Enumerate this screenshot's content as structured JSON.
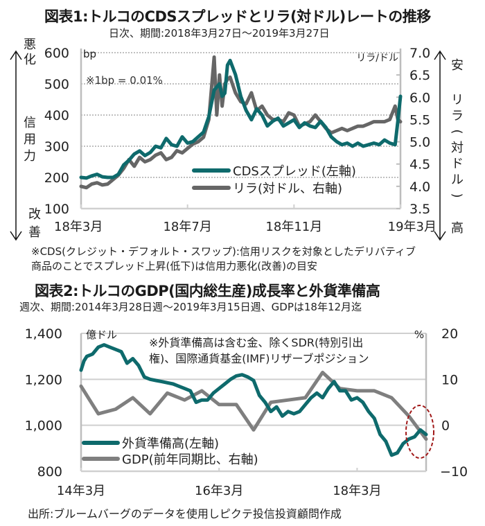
{
  "chart_data": [
    {
      "type": "line",
      "title": "図表1:トルコのCDSスプレッドとリラ(対ドル)レートの推移",
      "subtitle": "日次、期間:2018年3月27日〜2019年3月27日",
      "unit_left": "bp",
      "unit_right": "リラ/ドル",
      "annotation": "※1bp = 0.01%",
      "left_axis_label_top": "悪化",
      "left_axis_label_mid": "信用力",
      "left_axis_label_bottom": "改善",
      "right_axis_label_top": "安",
      "right_axis_label_mid": "リラ(対ドル)",
      "right_axis_label_bottom": "高",
      "ylim_left": [
        100,
        600
      ],
      "yticks_left": [
        "600",
        "500",
        "400",
        "300",
        "200",
        "100"
      ],
      "ylim_right": [
        3.5,
        7.0
      ],
      "yticks_right": [
        "7.0",
        "6.5",
        "6.0",
        "5.5",
        "5.0",
        "4.5",
        "4.0",
        "3.5"
      ],
      "xticks": [
        "18年3月",
        "18年7月",
        "18年11月",
        "19年3月"
      ],
      "xlim": [
        0,
        12
      ],
      "xtick_positions": [
        0,
        4,
        8,
        12
      ],
      "grid": true,
      "legend_position": "bottom-right",
      "series": [
        {
          "name": "CDSスプレッド(左軸)",
          "axis": "left",
          "color": "#0e6a6c",
          "x": [
            0,
            0.2,
            0.4,
            0.6,
            0.8,
            1.0,
            1.2,
            1.4,
            1.6,
            1.8,
            2.0,
            2.2,
            2.4,
            2.6,
            2.8,
            3.0,
            3.2,
            3.4,
            3.6,
            3.8,
            4.0,
            4.2,
            4.4,
            4.6,
            4.8,
            5.0,
            5.2,
            5.3,
            5.4,
            5.5,
            5.6,
            5.8,
            6.0,
            6.2,
            6.4,
            6.6,
            6.8,
            7.0,
            7.2,
            7.4,
            7.6,
            7.8,
            8.0,
            8.2,
            8.4,
            8.6,
            8.8,
            9.0,
            9.2,
            9.4,
            9.6,
            9.8,
            10.0,
            10.2,
            10.4,
            10.6,
            10.8,
            11.0,
            11.2,
            11.4,
            11.6,
            11.8,
            11.9,
            12.0
          ],
          "values": [
            200,
            198,
            205,
            210,
            202,
            200,
            200,
            210,
            240,
            255,
            275,
            285,
            270,
            280,
            300,
            295,
            325,
            305,
            300,
            330,
            310,
            315,
            330,
            345,
            395,
            480,
            500,
            460,
            470,
            560,
            575,
            530,
            460,
            415,
            385,
            420,
            400,
            365,
            380,
            390,
            365,
            375,
            385,
            360,
            375,
            365,
            360,
            380,
            360,
            330,
            315,
            305,
            310,
            300,
            310,
            300,
            305,
            310,
            305,
            320,
            310,
            305,
            380,
            460
          ]
        },
        {
          "name": "リラ(対ドル、右軸)",
          "axis": "right",
          "color": "#666666",
          "x": [
            0,
            0.2,
            0.4,
            0.6,
            0.8,
            1.0,
            1.2,
            1.4,
            1.6,
            1.8,
            2.0,
            2.2,
            2.4,
            2.6,
            2.8,
            3.0,
            3.2,
            3.4,
            3.6,
            3.8,
            4.0,
            4.2,
            4.4,
            4.6,
            4.8,
            5.0,
            5.1,
            5.2,
            5.3,
            5.4,
            5.5,
            5.6,
            5.8,
            6.0,
            6.2,
            6.4,
            6.6,
            6.8,
            7.0,
            7.2,
            7.4,
            7.6,
            7.8,
            8.0,
            8.2,
            8.4,
            8.6,
            8.8,
            9.0,
            9.2,
            9.4,
            9.6,
            9.8,
            10.0,
            10.2,
            10.4,
            10.6,
            10.8,
            11.0,
            11.2,
            11.4,
            11.6,
            11.8,
            11.9,
            12.0
          ],
          "values": [
            4.0,
            3.97,
            4.05,
            4.08,
            4.03,
            4.05,
            4.15,
            4.25,
            4.4,
            4.6,
            4.45,
            4.65,
            4.55,
            4.6,
            4.7,
            4.75,
            4.6,
            4.65,
            4.8,
            4.75,
            4.85,
            4.95,
            5.0,
            5.1,
            5.5,
            6.9,
            5.6,
            6.5,
            5.8,
            6.3,
            6.4,
            6.45,
            6.1,
            5.9,
            5.85,
            6.1,
            5.7,
            5.8,
            5.6,
            5.5,
            5.5,
            5.45,
            5.65,
            5.6,
            5.35,
            5.4,
            5.45,
            5.6,
            5.45,
            5.3,
            5.2,
            5.25,
            5.3,
            5.25,
            5.3,
            5.35,
            5.35,
            5.4,
            5.45,
            5.45,
            5.45,
            5.5,
            5.8,
            5.5,
            5.45
          ]
        }
      ],
      "footnote_lines": [
        "※CDS(クレジット・デフォルト・スワップ):信用リスクを対象としたデリバティブ",
        "商品のことでスプレッド上昇(低下)は信用力悪化(改善)の目安"
      ]
    },
    {
      "type": "line",
      "title": "図表2:トルコのGDP(国内総生産)成長率と外貨準備高",
      "subtitle": "週次、期間:2014年3月28日週〜2019年3月15日週、GDPは18年12月迄",
      "unit_left": "億ドル",
      "unit_right": "%",
      "annotation_lines": [
        "※外貨準備高は含む金、除くSDR(特別引出",
        "権)、国際通貨基金(IMF)リザーブポジション"
      ],
      "ylim_left": [
        800,
        1400
      ],
      "yticks_left": [
        "1,400",
        "1,200",
        "1,000",
        "800"
      ],
      "ylim_right": [
        -10,
        20
      ],
      "yticks_right": [
        "20",
        "10",
        "0",
        "-10"
      ],
      "xticks": [
        "14年3月",
        "16年3月",
        "18年3月"
      ],
      "xlim": [
        0,
        60
      ],
      "xtick_positions": [
        0,
        24,
        48
      ],
      "grid": true,
      "legend_position": "bottom-left",
      "highlight": "dashed-red-ellipse-at-latest-values",
      "highlight_color": "#a01818",
      "series": [
        {
          "name": "外貨準備高(左軸)",
          "axis": "left",
          "color": "#0e6a6c",
          "x": [
            0,
            0.5,
            1,
            2,
            3,
            4,
            5,
            6,
            7,
            8,
            9,
            10,
            11,
            12,
            13,
            14,
            15,
            16,
            17,
            18,
            19,
            20,
            21,
            22,
            23,
            24,
            25,
            26,
            27,
            28,
            29,
            30,
            31,
            32,
            33,
            34,
            35,
            36,
            37,
            38,
            39,
            40,
            41,
            42,
            43,
            44,
            45,
            46,
            47,
            48,
            49,
            50,
            51,
            52,
            53,
            54,
            55,
            56,
            57,
            58,
            59,
            60
          ],
          "values": [
            1240,
            1280,
            1300,
            1310,
            1340,
            1350,
            1340,
            1330,
            1320,
            1270,
            1290,
            1260,
            1210,
            1200,
            1195,
            1190,
            1185,
            1180,
            1170,
            1160,
            1150,
            1100,
            1110,
            1110,
            1140,
            1160,
            1180,
            1200,
            1215,
            1220,
            1210,
            1195,
            1130,
            1100,
            1060,
            1080,
            1040,
            1060,
            1050,
            1060,
            1090,
            1120,
            1140,
            1120,
            1160,
            1190,
            1150,
            1150,
            1110,
            1120,
            1100,
            1060,
            1030,
            960,
            930,
            870,
            880,
            920,
            940,
            950,
            980,
            960
          ]
        },
        {
          "name": "GDP(前年同期比、右軸)",
          "axis": "right",
          "color": "#7f7f7f",
          "x": [
            0,
            3,
            6,
            9,
            12,
            15,
            18,
            21,
            24,
            27,
            30,
            33,
            36,
            39,
            42,
            45,
            48,
            51,
            54,
            57,
            60
          ],
          "values": [
            8.5,
            2.5,
            3.5,
            6,
            2.5,
            7,
            5.5,
            7.5,
            4.5,
            4.5,
            -1,
            5,
            5.5,
            6,
            11.5,
            8,
            7.5,
            7.5,
            6,
            2,
            -3
          ]
        }
      ]
    }
  ],
  "source": "出所:ブルームバーグのデータを使用しピクテ投信投資顧問作成"
}
